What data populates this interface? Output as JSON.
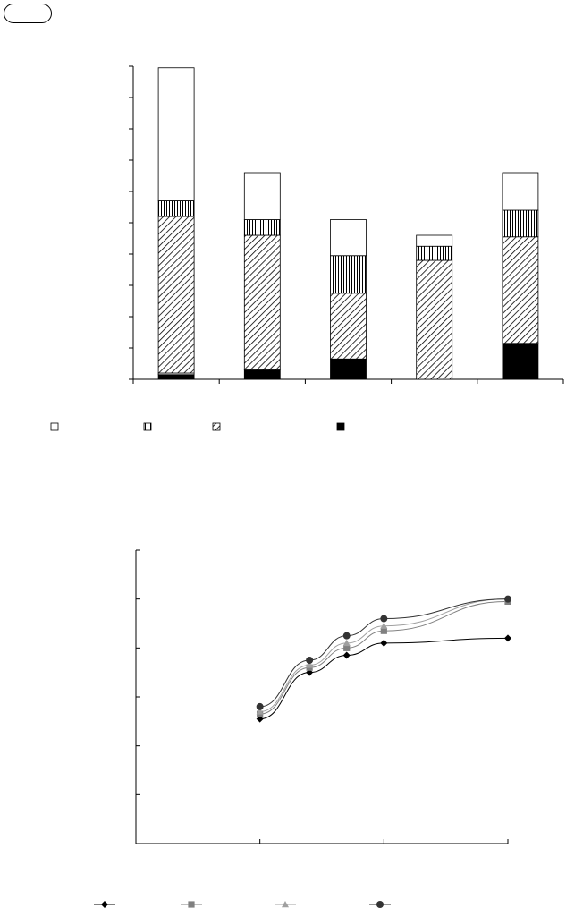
{
  "header": {
    "tag": ""
  },
  "chart_data": [
    {
      "type": "bar",
      "stacked": true,
      "categories": [
        "",
        "",
        "",
        "",
        ""
      ],
      "ylim": [
        0,
        100
      ],
      "yticks": [
        0,
        10,
        20,
        30,
        40,
        50,
        60,
        70,
        80,
        90,
        100
      ],
      "grid": false,
      "legend_placement": "bottom",
      "series": [
        {
          "values": [
            1.5,
            3.0,
            6.5,
            0.0,
            11.5
          ],
          "fill": "black"
        },
        {
          "values": [
            0.5,
            0.0,
            0.0,
            0.0,
            0.0
          ],
          "fill": "white"
        },
        {
          "values": [
            50.0,
            43.0,
            21.0,
            38.0,
            34.0
          ],
          "fill": "hatch"
        },
        {
          "values": [
            5.0,
            5.0,
            12.0,
            4.5,
            8.5
          ],
          "fill": "vertical"
        },
        {
          "values": [
            42.5,
            15.0,
            11.5,
            3.5,
            12.0
          ],
          "fill": "white"
        }
      ],
      "legend": [
        {
          "label": "",
          "fill": "white"
        },
        {
          "label": "",
          "fill": "vertical"
        },
        {
          "label": "",
          "fill": "hatch"
        },
        {
          "label": "",
          "fill": "black"
        }
      ]
    },
    {
      "type": "line",
      "x": [
        0,
        1,
        2,
        3
      ],
      "xticks": [
        0,
        1,
        2,
        3
      ],
      "ylim": [
        0,
        60
      ],
      "yticks": [
        0,
        10,
        20,
        30,
        40,
        50,
        60
      ],
      "grid": false,
      "legend_placement": "bottom",
      "series": [
        {
          "marker": "diamond",
          "color": "#000000",
          "points": [
            [
              1.0,
              25.5
            ],
            [
              1.4,
              35.0
            ],
            [
              1.7,
              38.5
            ],
            [
              2.0,
              41.0
            ],
            [
              3.0,
              42.0
            ]
          ]
        },
        {
          "marker": "square",
          "color": "#808080",
          "points": [
            [
              1.0,
              26.5
            ],
            [
              1.4,
              36.0
            ],
            [
              1.7,
              40.0
            ],
            [
              2.0,
              43.5
            ],
            [
              3.0,
              49.5
            ]
          ]
        },
        {
          "marker": "triangle",
          "color": "#a0a0a0",
          "points": [
            [
              1.0,
              27.0
            ],
            [
              1.4,
              36.5
            ],
            [
              1.7,
              41.0
            ],
            [
              2.0,
              44.5
            ],
            [
              3.0,
              50.0
            ]
          ]
        },
        {
          "marker": "circle",
          "color": "#333333",
          "points": [
            [
              1.0,
              28.0
            ],
            [
              1.4,
              37.5
            ],
            [
              1.7,
              42.5
            ],
            [
              2.0,
              46.0
            ],
            [
              3.0,
              50.0
            ]
          ]
        }
      ],
      "legend": [
        {
          "label": "",
          "marker": "diamond"
        },
        {
          "label": "",
          "marker": "square"
        },
        {
          "label": "",
          "marker": "triangle"
        },
        {
          "label": "",
          "marker": "circle"
        }
      ]
    }
  ]
}
